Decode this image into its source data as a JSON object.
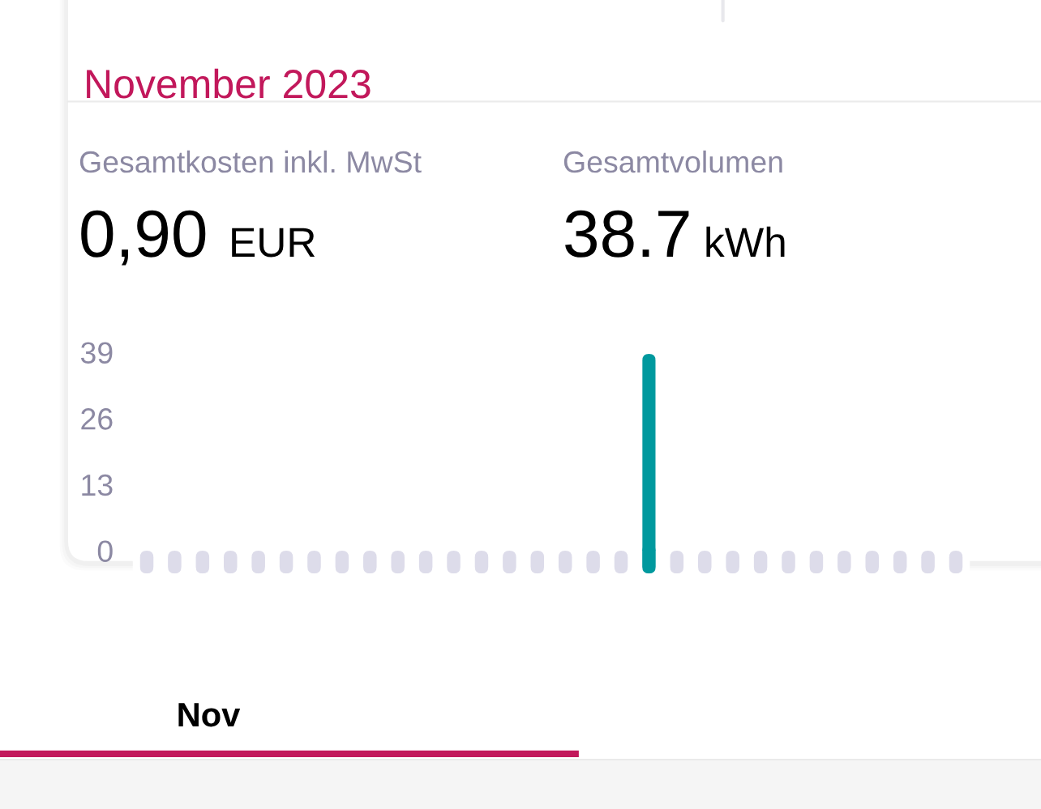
{
  "chart_data": {
    "type": "bar",
    "title": "November 2023",
    "annotations": [
      "Gesamtkosten inkl. MwSt",
      "Gesamtvolumen",
      "0,90",
      "EUR",
      "38.7",
      "kWh",
      "Nov"
    ],
    "categories": [
      null,
      null,
      null,
      null,
      null,
      null,
      null,
      null,
      null,
      null,
      null,
      null,
      null,
      null,
      null,
      null,
      null,
      null,
      null,
      null,
      null,
      null,
      null,
      null,
      null,
      null,
      null,
      null,
      null,
      null
    ],
    "values": [
      0,
      0,
      0,
      0,
      0,
      0,
      0,
      0,
      0,
      0,
      0,
      0,
      0,
      0,
      0,
      0,
      0,
      0,
      38.7,
      0,
      0,
      0,
      0,
      0,
      0,
      0,
      0,
      0,
      0,
      0
    ],
    "colors": [
      "#dddcea",
      "#dddcea",
      "#dddcea",
      "#dddcea",
      "#dddcea",
      "#dddcea",
      "#dddcea",
      "#dddcea",
      "#dddcea",
      "#dddcea",
      "#dddcea",
      "#dddcea",
      "#dddcea",
      "#dddcea",
      "#dddcea",
      "#dddcea",
      "#dddcea",
      "#dddcea",
      "#00999e",
      "#dddcea",
      "#dddcea",
      "#dddcea",
      "#dddcea",
      "#dddcea",
      "#dddcea",
      "#dddcea",
      "#dddcea",
      "#dddcea",
      "#dddcea",
      "#dddcea"
    ],
    "ylim": [
      -4.5,
      41.5
    ],
    "yticks": [
      0,
      13,
      26,
      39
    ],
    "tick_labels": "y"
  }
}
